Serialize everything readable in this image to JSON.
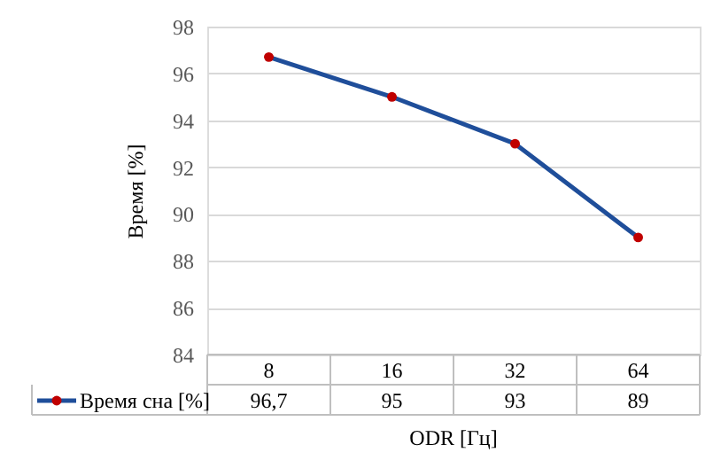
{
  "chart_data": {
    "type": "line",
    "xlabel": "ODR [Гц]",
    "ylabel": "Время [%]",
    "categories": [
      "8",
      "16",
      "32",
      "64"
    ],
    "series": [
      {
        "name": "Время сна [%]",
        "color": "#1f4e9a",
        "values": [
          96.7,
          95,
          93,
          89
        ],
        "value_labels": [
          "96,7",
          "95",
          "93",
          "89"
        ]
      }
    ],
    "ylim": [
      84,
      98
    ],
    "yticks": [
      84,
      86,
      88,
      90,
      92,
      94,
      96,
      98
    ],
    "grid": "y",
    "legend": "bottom",
    "marker": "circle",
    "line_style": "solid"
  }
}
